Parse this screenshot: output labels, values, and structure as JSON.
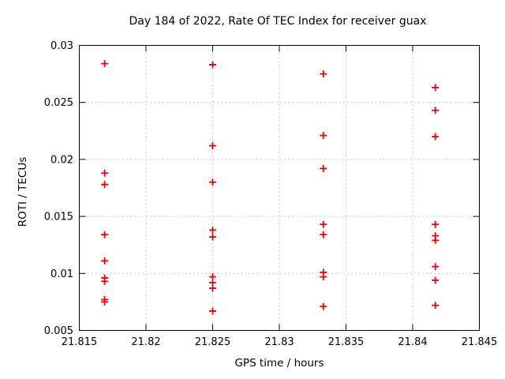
{
  "chart_data": {
    "type": "scatter",
    "title": "Day 184 of 2022, Rate Of TEC Index for receiver guax",
    "xlabel": "GPS time / hours",
    "ylabel": "ROTI / TECUs",
    "xlim": [
      21.815,
      21.845
    ],
    "ylim": [
      0.005,
      0.03
    ],
    "grid": true,
    "legend": "none",
    "x_ticks": [
      21.815,
      21.82,
      21.825,
      21.83,
      21.835,
      21.84,
      21.845
    ],
    "x_tick_labels": [
      "21.815",
      "21.82",
      "21.825",
      "21.83",
      "21.835",
      "21.84",
      "21.845"
    ],
    "y_ticks": [
      0.005,
      0.01,
      0.015,
      0.02,
      0.025,
      0.03
    ],
    "y_tick_labels": [
      "0.005",
      "0.01",
      "0.015",
      "0.02",
      "0.025",
      "0.03"
    ],
    "marker": {
      "shape": "plus",
      "color": "#e60000",
      "size": 9
    },
    "series": [
      {
        "name": "ROTI",
        "points": [
          {
            "x": 21.8169,
            "y": 0.0284
          },
          {
            "x": 21.8169,
            "y": 0.0188
          },
          {
            "x": 21.8169,
            "y": 0.0178
          },
          {
            "x": 21.8169,
            "y": 0.0134
          },
          {
            "x": 21.8169,
            "y": 0.0111
          },
          {
            "x": 21.8169,
            "y": 0.0096
          },
          {
            "x": 21.8169,
            "y": 0.0093
          },
          {
            "x": 21.8169,
            "y": 0.0077
          },
          {
            "x": 21.8169,
            "y": 0.0075
          },
          {
            "x": 21.825,
            "y": 0.0283
          },
          {
            "x": 21.825,
            "y": 0.0212
          },
          {
            "x": 21.825,
            "y": 0.018
          },
          {
            "x": 21.825,
            "y": 0.0138
          },
          {
            "x": 21.825,
            "y": 0.0132
          },
          {
            "x": 21.825,
            "y": 0.0097
          },
          {
            "x": 21.825,
            "y": 0.0092
          },
          {
            "x": 21.825,
            "y": 0.0087
          },
          {
            "x": 21.825,
            "y": 0.0067
          },
          {
            "x": 21.8333,
            "y": 0.0275
          },
          {
            "x": 21.8333,
            "y": 0.0221
          },
          {
            "x": 21.8333,
            "y": 0.0192
          },
          {
            "x": 21.8333,
            "y": 0.0143
          },
          {
            "x": 21.8333,
            "y": 0.0134
          },
          {
            "x": 21.8333,
            "y": 0.0101
          },
          {
            "x": 21.8333,
            "y": 0.0097
          },
          {
            "x": 21.8333,
            "y": 0.0071
          },
          {
            "x": 21.8417,
            "y": 0.0263
          },
          {
            "x": 21.8417,
            "y": 0.0243
          },
          {
            "x": 21.8417,
            "y": 0.022
          },
          {
            "x": 21.8417,
            "y": 0.0143
          },
          {
            "x": 21.8417,
            "y": 0.0133
          },
          {
            "x": 21.8417,
            "y": 0.0129
          },
          {
            "x": 21.8417,
            "y": 0.0106
          },
          {
            "x": 21.8417,
            "y": 0.0094
          },
          {
            "x": 21.8417,
            "y": 0.0072
          }
        ]
      }
    ],
    "colors": {
      "background": "#ffffff",
      "border": "#000000",
      "gridline": "#b5b5b5",
      "text": "#000000"
    }
  }
}
